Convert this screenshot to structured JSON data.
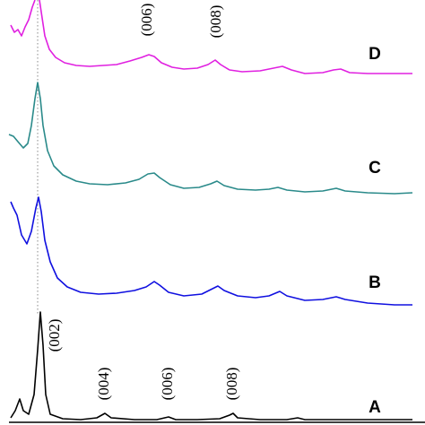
{
  "curve_labels": [
    "D",
    "C",
    "B",
    "A"
  ],
  "peak_labels": {
    "top": [
      "(006)",
      "(008)"
    ],
    "bottom": [
      "(002)",
      "(004)",
      "(006)",
      "(008)"
    ]
  }
}
